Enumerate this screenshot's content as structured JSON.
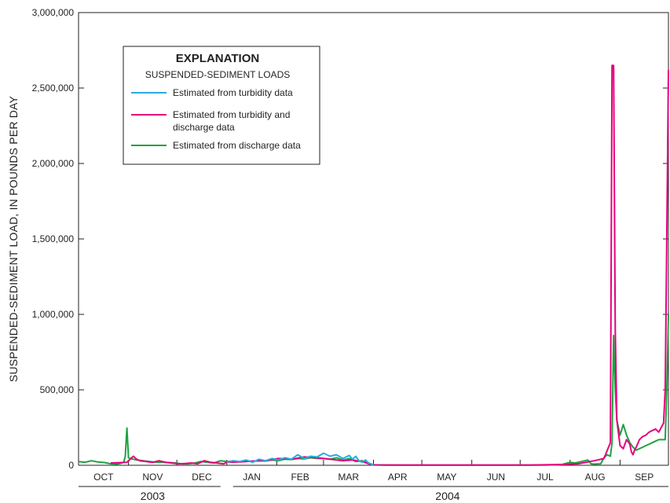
{
  "chart_data": {
    "type": "line",
    "ylabel": "SUSPENDED-SEDIMENT LOAD, IN POUNDS PER DAY",
    "ylim": [
      0,
      3000000
    ],
    "y_ticks": [
      0,
      500000,
      1000000,
      1500000,
      2000000,
      2500000,
      3000000
    ],
    "y_tick_labels": [
      "0",
      "500,000",
      "1,000,000",
      "1,500,000",
      "2,000,000",
      "2,500,000",
      "3,000,000"
    ],
    "x_unit": "day of water year (Oct 1, 2003 = 0)",
    "xlim": [
      0,
      366
    ],
    "months": [
      {
        "label": "OCT",
        "start": 0,
        "end": 31
      },
      {
        "label": "NOV",
        "start": 31,
        "end": 61
      },
      {
        "label": "DEC",
        "start": 61,
        "end": 92
      },
      {
        "label": "JAN",
        "start": 92,
        "end": 123
      },
      {
        "label": "FEB",
        "start": 123,
        "end": 152
      },
      {
        "label": "MAR",
        "start": 152,
        "end": 183
      },
      {
        "label": "APR",
        "start": 183,
        "end": 213
      },
      {
        "label": "MAY",
        "start": 213,
        "end": 244
      },
      {
        "label": "JUN",
        "start": 244,
        "end": 274
      },
      {
        "label": "JUL",
        "start": 274,
        "end": 305
      },
      {
        "label": "AUG",
        "start": 305,
        "end": 336
      },
      {
        "label": "SEP",
        "start": 336,
        "end": 366
      }
    ],
    "years": [
      {
        "label": "2003",
        "start": 0,
        "end": 92
      },
      {
        "label": "2004",
        "start": 92,
        "end": 366
      }
    ],
    "legend": {
      "title": "EXPLANATION",
      "subtitle": "SUSPENDED-SEDIMENT LOADS",
      "placement": "top-left"
    },
    "series": [
      {
        "name": "Estimated from turbidity data",
        "color": "#29abe2",
        "x": [
          92,
          96,
          100,
          104,
          108,
          112,
          116,
          120,
          124,
          128,
          132,
          136,
          140,
          144,
          148,
          152,
          156,
          160,
          164,
          168,
          170,
          172,
          174,
          176,
          178,
          180,
          182,
          183
        ],
        "y": [
          20000,
          30000,
          25000,
          35000,
          20000,
          40000,
          30000,
          45000,
          35000,
          50000,
          40000,
          70000,
          45000,
          60000,
          55000,
          80000,
          60000,
          70000,
          45000,
          65000,
          40000,
          60000,
          30000,
          20000,
          35000,
          15000,
          5000,
          2000
        ]
      },
      {
        "name": "Estimated from turbidity and discharge data",
        "color": "#e6007e",
        "x": [
          20,
          30,
          34,
          36,
          38,
          42,
          46,
          50,
          54,
          58,
          62,
          66,
          70,
          74,
          78,
          82,
          86,
          90,
          92,
          100,
          108,
          116,
          124,
          132,
          140,
          148,
          156,
          164,
          170,
          176,
          180,
          183,
          190,
          200,
          220,
          240,
          260,
          280,
          300,
          310,
          320,
          326,
          330,
          331,
          332,
          333,
          334,
          336,
          338,
          340,
          342,
          343,
          344,
          345,
          346,
          348,
          350,
          352,
          354,
          356,
          358,
          360,
          362,
          363,
          364,
          365,
          366
        ],
        "y": [
          15000,
          20000,
          60000,
          40000,
          30000,
          25000,
          20000,
          30000,
          20000,
          15000,
          10000,
          12000,
          15000,
          10000,
          30000,
          20000,
          15000,
          10000,
          20000,
          22000,
          28000,
          30000,
          45000,
          40000,
          55000,
          50000,
          40000,
          30000,
          35000,
          25000,
          10000,
          2000,
          1000,
          1000,
          1000,
          1000,
          1000,
          1000,
          5000,
          10000,
          30000,
          45000,
          150000,
          2650000,
          2650000,
          900000,
          300000,
          130000,
          110000,
          170000,
          140000,
          90000,
          70000,
          100000,
          120000,
          170000,
          190000,
          200000,
          220000,
          230000,
          240000,
          220000,
          260000,
          280000,
          500000,
          1500000,
          2620000
        ]
      },
      {
        "name": "Estimated from discharge data",
        "color": "#1fa240",
        "x": [
          0,
          4,
          8,
          12,
          16,
          20,
          24,
          26,
          28,
          29,
          30,
          31,
          32,
          34,
          36,
          40,
          44,
          48,
          52,
          56,
          60,
          64,
          68,
          72,
          76,
          80,
          84,
          88,
          92,
          96,
          100,
          104,
          108,
          112,
          116,
          120,
          124,
          128,
          132,
          136,
          140,
          144,
          148,
          152,
          156,
          160,
          164,
          168,
          172,
          176,
          180,
          183,
          190,
          200,
          210,
          220,
          230,
          240,
          250,
          260,
          270,
          280,
          290,
          300,
          305,
          308,
          312,
          316,
          318,
          320,
          324,
          326,
          328,
          330,
          331,
          332,
          333,
          334,
          336,
          338,
          340,
          342,
          344,
          346,
          348,
          350,
          352,
          354,
          356,
          358,
          360,
          362,
          364,
          365,
          366
        ],
        "y": [
          25000,
          20000,
          30000,
          22000,
          18000,
          10000,
          8000,
          12000,
          20000,
          60000,
          247000,
          50000,
          45000,
          40000,
          35000,
          30000,
          25000,
          20000,
          20000,
          18000,
          15000,
          10000,
          10000,
          15000,
          25000,
          20000,
          15000,
          30000,
          25000,
          28000,
          22000,
          30000,
          25000,
          32000,
          28000,
          35000,
          30000,
          40000,
          38000,
          45000,
          42000,
          50000,
          45000,
          45000,
          40000,
          50000,
          35000,
          45000,
          25000,
          30000,
          15000,
          3000,
          2000,
          1000,
          1000,
          1000,
          1000,
          1000,
          1000,
          1000,
          1000,
          1000,
          1000,
          5000,
          20000,
          15000,
          25000,
          35000,
          10000,
          8000,
          10000,
          50000,
          70000,
          60000,
          150000,
          860000,
          500000,
          300000,
          200000,
          270000,
          200000,
          150000,
          120000,
          100000,
          110000,
          120000,
          130000,
          140000,
          150000,
          160000,
          170000,
          170000,
          170000,
          500000,
          1000000
        ]
      }
    ]
  }
}
